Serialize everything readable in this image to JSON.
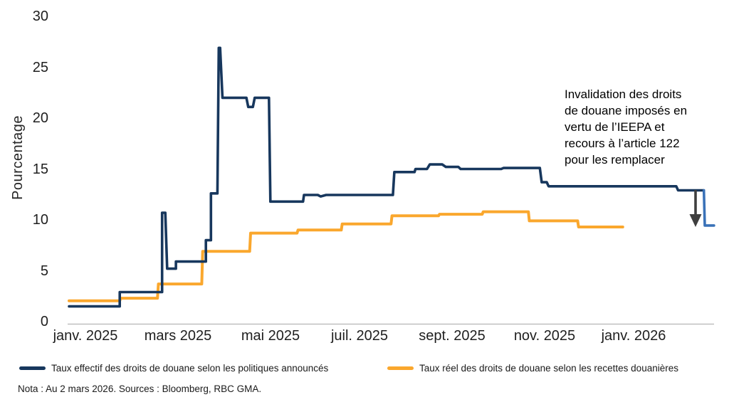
{
  "chart": {
    "ylabel": "Pourcentage",
    "y_ticks": [
      0,
      5,
      10,
      15,
      20,
      25,
      30
    ],
    "x_ticks": [
      "janv. 2025",
      "mars 2025",
      "mai 2025",
      "juil. 2025",
      "sept. 2025",
      "nov. 2025",
      "janv. 2026"
    ],
    "annotation": {
      "lines": [
        "Invalidation des droits",
        "de douane imposés en",
        "vertu de l’IEEPA et",
        "recours à l’article 122",
        "pour les remplacer"
      ],
      "arrow_icon": "down-arrow"
    }
  },
  "chart_data": {
    "type": "line",
    "title": "",
    "xlabel": "",
    "ylabel": "Pourcentage",
    "ylim": [
      0,
      30
    ],
    "xlim_months_since_jan_2025": [
      0,
      14
    ],
    "x_unit": "months since 1 janv. 2025 (0 = janv. 2025, 14 = mars 2026)",
    "x_tick_labels": [
      "janv. 2025",
      "mars 2025",
      "mai 2025",
      "juil. 2025",
      "sept. 2025",
      "nov. 2025",
      "janv. 2026"
    ],
    "grid": false,
    "legend_position": "bottom",
    "series": [
      {
        "name": "Taux effectif des droits de douane selon les politiques announcés",
        "color": "#17375D",
        "tail_color": "#3A72B8",
        "step": true,
        "points": [
          [
            0.0,
            1.5
          ],
          [
            1.1,
            1.5
          ],
          [
            1.1,
            2.9
          ],
          [
            2.02,
            2.9
          ],
          [
            2.02,
            10.7
          ],
          [
            2.09,
            10.7
          ],
          [
            2.13,
            5.2
          ],
          [
            2.32,
            5.2
          ],
          [
            2.32,
            5.9
          ],
          [
            2.97,
            5.9
          ],
          [
            2.97,
            8.0
          ],
          [
            3.08,
            8.0
          ],
          [
            3.08,
            12.6
          ],
          [
            3.22,
            12.6
          ],
          [
            3.25,
            26.9
          ],
          [
            3.28,
            26.9
          ],
          [
            3.33,
            22.0
          ],
          [
            3.85,
            22.0
          ],
          [
            3.89,
            21.1
          ],
          [
            3.99,
            21.1
          ],
          [
            4.03,
            22.0
          ],
          [
            4.34,
            22.0
          ],
          [
            4.37,
            11.8
          ],
          [
            5.08,
            11.8
          ],
          [
            5.1,
            12.45
          ],
          [
            5.4,
            12.45
          ],
          [
            5.46,
            12.3
          ],
          [
            5.58,
            12.45
          ],
          [
            7.03,
            12.45
          ],
          [
            7.06,
            14.7
          ],
          [
            7.5,
            14.7
          ],
          [
            7.52,
            15.0
          ],
          [
            7.77,
            15.0
          ],
          [
            7.83,
            15.45
          ],
          [
            8.1,
            15.45
          ],
          [
            8.18,
            15.2
          ],
          [
            8.45,
            15.2
          ],
          [
            8.5,
            15.0
          ],
          [
            9.38,
            15.0
          ],
          [
            9.43,
            15.1
          ],
          [
            10.22,
            15.1
          ],
          [
            10.26,
            13.7
          ],
          [
            10.37,
            13.7
          ],
          [
            10.41,
            13.3
          ],
          [
            13.18,
            13.3
          ],
          [
            13.22,
            12.9
          ],
          [
            13.78,
            12.9
          ]
        ],
        "tail_points": [
          [
            13.78,
            12.9
          ],
          [
            13.8,
            9.45
          ],
          [
            14.0,
            9.45
          ]
        ]
      },
      {
        "name": "Taux réel des droits de douane selon les recettes douanières",
        "color": "#FAA72D",
        "step": true,
        "points": [
          [
            0.0,
            2.05
          ],
          [
            1.1,
            2.05
          ],
          [
            1.12,
            2.3
          ],
          [
            1.92,
            2.3
          ],
          [
            1.94,
            3.7
          ],
          [
            2.88,
            3.7
          ],
          [
            2.9,
            6.9
          ],
          [
            3.92,
            6.9
          ],
          [
            3.94,
            8.7
          ],
          [
            4.95,
            8.7
          ],
          [
            4.97,
            9.0
          ],
          [
            5.91,
            9.0
          ],
          [
            5.93,
            9.6
          ],
          [
            6.99,
            9.6
          ],
          [
            7.01,
            10.4
          ],
          [
            8.02,
            10.4
          ],
          [
            8.04,
            10.55
          ],
          [
            8.97,
            10.55
          ],
          [
            8.99,
            10.8
          ],
          [
            9.97,
            10.8
          ],
          [
            9.99,
            9.9
          ],
          [
            11.04,
            9.9
          ],
          [
            11.06,
            9.3
          ],
          [
            12.02,
            9.3
          ]
        ]
      }
    ],
    "annotation": "Invalidation des droits de douane imposés en vertu de l’IEEPA et recours à l’article 122 pour les remplacer"
  },
  "legend": {
    "items": [
      {
        "label": "Taux effectif des droits de douane selon les politiques announcés",
        "color": "#17375D"
      },
      {
        "label": "Taux réel des droits de douane selon les recettes douanières",
        "color": "#FAA72D"
      }
    ]
  },
  "note": "Nota : Au 2 mars 2026. Sources : Bloomberg, RBC GMA.",
  "colors": {
    "navy": "#17375D",
    "navy_tail": "#3A72B8",
    "orange": "#FAA72D",
    "axis_line": "#BFBFBF",
    "arrow": "#3F3F3F"
  }
}
